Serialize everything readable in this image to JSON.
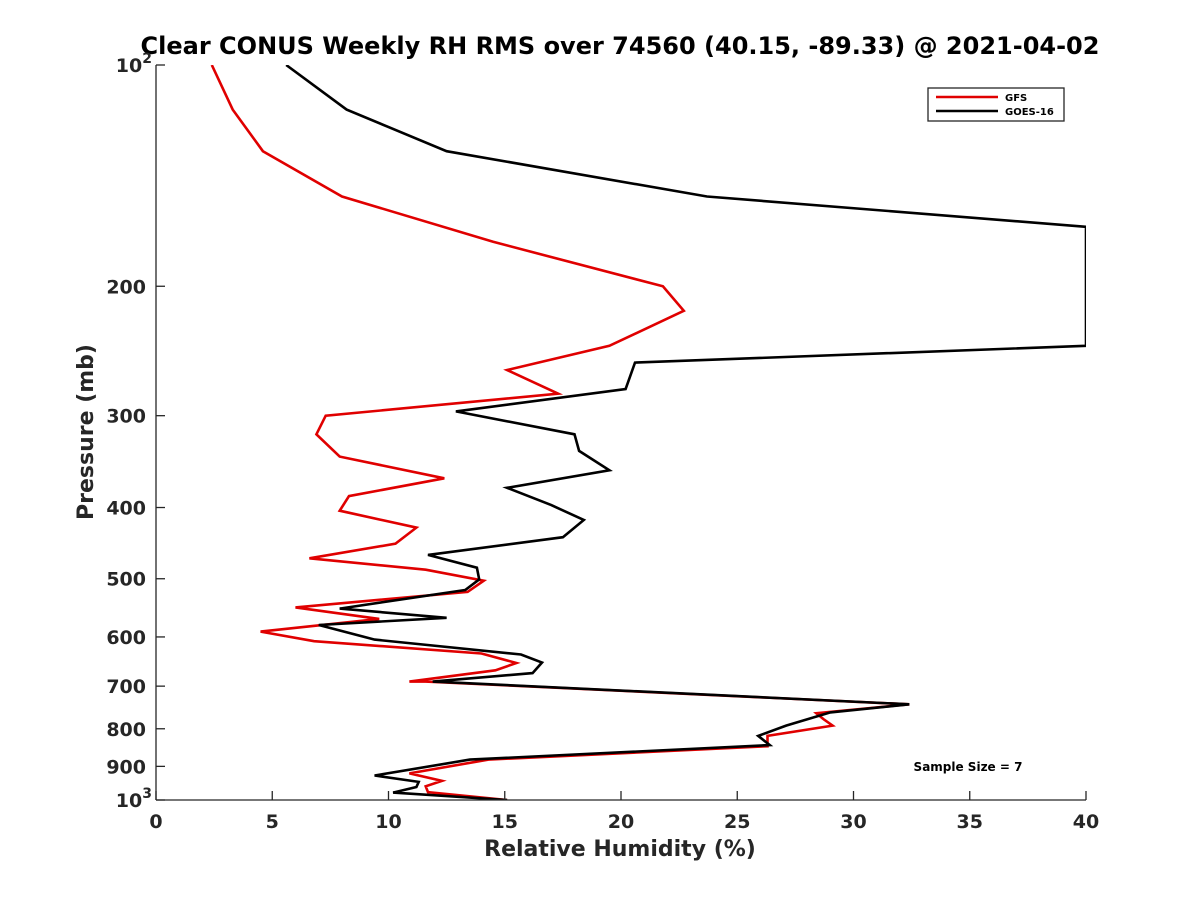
{
  "chart_data": {
    "type": "line",
    "title": "Clear CONUS Weekly RH RMS over 74560 (40.15, -89.33) @ 2021-04-02",
    "xlabel": "Relative Humidity (%)",
    "ylabel": "Pressure (mb)",
    "xlim": [
      0,
      40
    ],
    "ylim": [
      100,
      1000
    ],
    "yscale": "log",
    "y_reversed": true,
    "x_ticks": [
      0,
      5,
      10,
      15,
      20,
      25,
      30,
      35,
      40
    ],
    "y_ticks": [
      {
        "value": 100,
        "label": "10",
        "sup": "2"
      },
      {
        "value": 200,
        "label": "200",
        "sup": ""
      },
      {
        "value": 300,
        "label": "300",
        "sup": ""
      },
      {
        "value": 400,
        "label": "400",
        "sup": ""
      },
      {
        "value": 500,
        "label": "500",
        "sup": ""
      },
      {
        "value": 600,
        "label": "600",
        "sup": ""
      },
      {
        "value": 700,
        "label": "700",
        "sup": ""
      },
      {
        "value": 800,
        "label": "800",
        "sup": ""
      },
      {
        "value": 900,
        "label": "900",
        "sup": ""
      },
      {
        "value": 1000,
        "label": "10",
        "sup": "3"
      }
    ],
    "grid": false,
    "legend_position": "top-right",
    "annotation": "Sample Size = 7",
    "series": [
      {
        "name": "GFS",
        "color": "#e00000",
        "points": [
          [
            2.4,
            100
          ],
          [
            3.3,
            115
          ],
          [
            4.6,
            131
          ],
          [
            8.0,
            151
          ],
          [
            14.5,
            174
          ],
          [
            21.8,
            200
          ],
          [
            22.7,
            216
          ],
          [
            19.5,
            241
          ],
          [
            15.1,
            260
          ],
          [
            17.3,
            280
          ],
          [
            7.3,
            300
          ],
          [
            6.9,
            318
          ],
          [
            7.9,
            341
          ],
          [
            12.4,
            365
          ],
          [
            8.3,
            386
          ],
          [
            7.9,
            404
          ],
          [
            11.2,
            426
          ],
          [
            10.3,
            448
          ],
          [
            6.6,
            469
          ],
          [
            11.6,
            486
          ],
          [
            14.1,
            503
          ],
          [
            13.4,
            521
          ],
          [
            6.0,
            547
          ],
          [
            9.6,
            567
          ],
          [
            4.5,
            590
          ],
          [
            6.8,
            608
          ],
          [
            14.0,
            632
          ],
          [
            15.5,
            651
          ],
          [
            14.6,
            666
          ],
          [
            10.9,
            690
          ],
          [
            11.6,
            690
          ],
          [
            32.4,
            741
          ],
          [
            28.4,
            762
          ],
          [
            28.7,
            776
          ],
          [
            29.1,
            792
          ],
          [
            26.3,
            818
          ],
          [
            26.3,
            845
          ],
          [
            14.3,
            881
          ],
          [
            10.9,
            920
          ],
          [
            12.3,
            942
          ],
          [
            11.6,
            958
          ],
          [
            11.7,
            976
          ],
          [
            15.1,
            1000
          ]
        ]
      },
      {
        "name": "GOES-16",
        "color": "#000000",
        "points": [
          [
            5.6,
            100
          ],
          [
            8.2,
            115
          ],
          [
            12.5,
            131
          ],
          [
            23.7,
            151
          ],
          [
            40,
            166
          ],
          [
            40,
            241
          ],
          [
            20.6,
            254
          ],
          [
            20.2,
            276
          ],
          [
            12.9,
            296
          ],
          [
            18.0,
            318
          ],
          [
            18.2,
            335
          ],
          [
            19.5,
            356
          ],
          [
            15.1,
            376
          ],
          [
            17.0,
            397
          ],
          [
            18.4,
            416
          ],
          [
            17.5,
            439
          ],
          [
            11.7,
            464
          ],
          [
            13.8,
            483
          ],
          [
            13.9,
            501
          ],
          [
            13.3,
            518
          ],
          [
            7.9,
            549
          ],
          [
            12.5,
            565
          ],
          [
            7.0,
            578
          ],
          [
            9.4,
            605
          ],
          [
            15.7,
            634
          ],
          [
            16.6,
            650
          ],
          [
            16.2,
            672
          ],
          [
            11.9,
            690
          ],
          [
            32.4,
            741
          ],
          [
            29.0,
            760
          ],
          [
            27.1,
            792
          ],
          [
            25.9,
            818
          ],
          [
            26.4,
            842
          ],
          [
            13.5,
            881
          ],
          [
            9.4,
            926
          ],
          [
            11.3,
            945
          ],
          [
            11.2,
            960
          ],
          [
            10.2,
            977
          ],
          [
            15.1,
            1000
          ]
        ]
      }
    ]
  }
}
